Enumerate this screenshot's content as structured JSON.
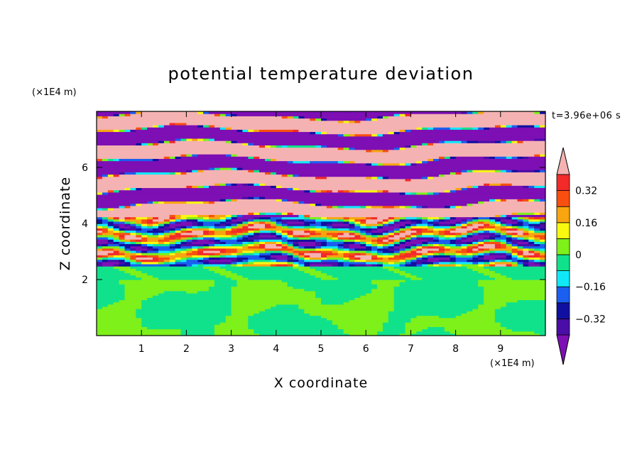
{
  "chart_data": {
    "type": "heatmap",
    "title": "potential temperature deviation",
    "xlabel": "X coordinate",
    "ylabel": "Z coordinate",
    "x_unit": "(×1E4 m)",
    "y_unit": "(×1E4 m)",
    "time_label": "t=3.96e+06 s",
    "xlim": [
      0,
      10
    ],
    "ylim": [
      0,
      8
    ],
    "x_ticks": [
      1,
      2,
      3,
      4,
      5,
      6,
      7,
      8,
      9
    ],
    "y_ticks": [
      2,
      4,
      6
    ],
    "colorbar": {
      "levels": [
        -0.4,
        -0.32,
        -0.24,
        -0.16,
        -0.08,
        0,
        0.08,
        0.16,
        0.24,
        0.32,
        0.4
      ],
      "tick_labels": [
        "0.32",
        "0.16",
        "0",
        "−0.16",
        "−0.32"
      ],
      "tick_values": [
        0.32,
        0.16,
        0,
        -0.16,
        -0.32
      ],
      "colors": [
        "#7d0fb4",
        "#4a0da8",
        "#1010a0",
        "#1a5ff0",
        "#10e8f8",
        "#10e28c",
        "#7ef01a",
        "#f8f810",
        "#f8a510",
        "#f84f10",
        "#f22a2a",
        "#f5b2b2"
      ],
      "extend": "both"
    },
    "regions": [
      {
        "z_range": [
          0,
          2
        ],
        "description_values": [
          -0.08,
          0.08
        ],
        "dominant": 0.04
      },
      {
        "z_range": [
          2,
          2.5
        ],
        "dominant": -0.04
      },
      {
        "z_range": [
          2.5,
          4.2
        ],
        "dominant": "mixed"
      },
      {
        "z_range": [
          4.2,
          8
        ],
        "dominant": "alternating ±0.4"
      }
    ]
  }
}
